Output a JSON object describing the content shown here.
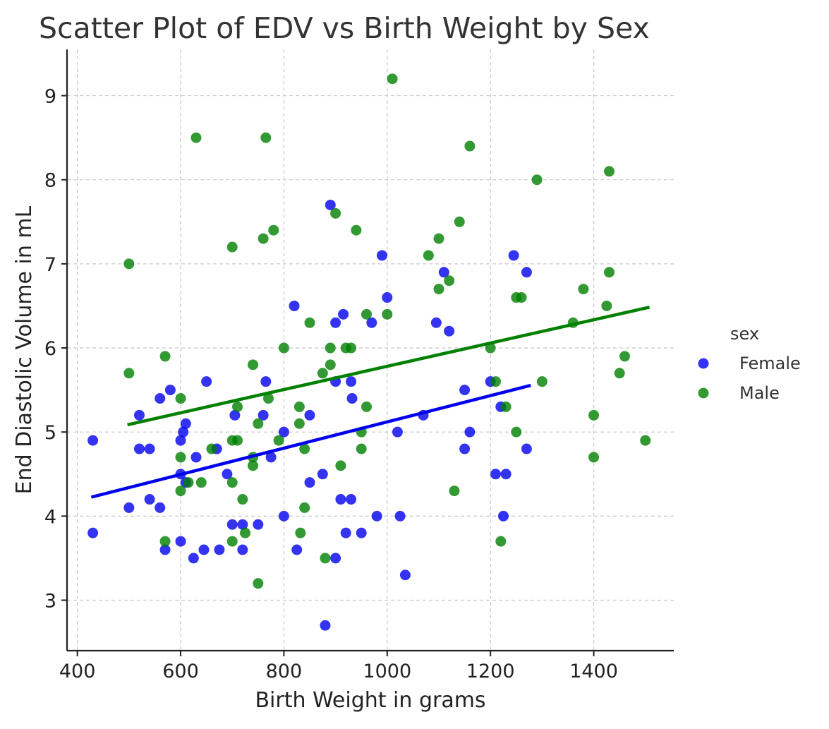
{
  "chart_data": {
    "type": "scatter",
    "title": "Scatter Plot of EDV vs Birth Weight by Sex",
    "xlabel": "Birth Weight in grams",
    "ylabel": "End Diastolic Volume in mL",
    "xlim": [
      380,
      1555
    ],
    "ylim": [
      2.4,
      9.55
    ],
    "xticks": [
      400,
      600,
      800,
      1000,
      1200,
      1400
    ],
    "yticks": [
      3,
      4,
      5,
      6,
      7,
      8,
      9
    ],
    "grid": true,
    "legend": {
      "title": "sex",
      "position": "right"
    },
    "series": [
      {
        "name": "Female",
        "color": "#0000ee",
        "points": [
          [
            430,
            4.9
          ],
          [
            430,
            3.8
          ],
          [
            500,
            4.1
          ],
          [
            520,
            5.2
          ],
          [
            520,
            4.8
          ],
          [
            540,
            4.8
          ],
          [
            540,
            4.2
          ],
          [
            560,
            5.4
          ],
          [
            560,
            4.1
          ],
          [
            570,
            3.6
          ],
          [
            580,
            5.5
          ],
          [
            600,
            4.9
          ],
          [
            600,
            4.5
          ],
          [
            600,
            3.7
          ],
          [
            605,
            5.0
          ],
          [
            610,
            5.1
          ],
          [
            610,
            4.4
          ],
          [
            625,
            3.5
          ],
          [
            630,
            4.7
          ],
          [
            645,
            3.6
          ],
          [
            650,
            5.6
          ],
          [
            670,
            4.8
          ],
          [
            675,
            3.6
          ],
          [
            690,
            4.5
          ],
          [
            700,
            3.9
          ],
          [
            705,
            5.2
          ],
          [
            720,
            3.9
          ],
          [
            720,
            3.6
          ],
          [
            750,
            3.9
          ],
          [
            760,
            5.2
          ],
          [
            765,
            5.6
          ],
          [
            775,
            4.7
          ],
          [
            800,
            5.0
          ],
          [
            800,
            4.0
          ],
          [
            820,
            6.5
          ],
          [
            825,
            3.6
          ],
          [
            850,
            5.2
          ],
          [
            850,
            4.4
          ],
          [
            875,
            4.5
          ],
          [
            880,
            2.7
          ],
          [
            890,
            7.7
          ],
          [
            900,
            6.3
          ],
          [
            900,
            5.6
          ],
          [
            900,
            3.5
          ],
          [
            910,
            4.2
          ],
          [
            915,
            6.4
          ],
          [
            920,
            3.8
          ],
          [
            930,
            5.6
          ],
          [
            930,
            4.2
          ],
          [
            932,
            5.4
          ],
          [
            950,
            3.8
          ],
          [
            970,
            6.3
          ],
          [
            980,
            4.0
          ],
          [
            990,
            7.1
          ],
          [
            1000,
            6.6
          ],
          [
            1020,
            5.0
          ],
          [
            1025,
            4.0
          ],
          [
            1035,
            3.3
          ],
          [
            1070,
            5.2
          ],
          [
            1095,
            6.3
          ],
          [
            1110,
            6.9
          ],
          [
            1120,
            6.2
          ],
          [
            1150,
            5.5
          ],
          [
            1150,
            4.8
          ],
          [
            1160,
            5.0
          ],
          [
            1200,
            5.6
          ],
          [
            1210,
            4.5
          ],
          [
            1220,
            5.3
          ],
          [
            1225,
            4.0
          ],
          [
            1230,
            4.5
          ],
          [
            1245,
            7.1
          ],
          [
            1270,
            6.9
          ],
          [
            1270,
            4.8
          ]
        ],
        "fit": [
          [
            430,
            4.23
          ],
          [
            1275,
            5.55
          ]
        ]
      },
      {
        "name": "Male",
        "color": "#008000",
        "points": [
          [
            500,
            7.0
          ],
          [
            500,
            5.7
          ],
          [
            570,
            5.9
          ],
          [
            570,
            3.7
          ],
          [
            600,
            5.4
          ],
          [
            600,
            4.7
          ],
          [
            600,
            4.3
          ],
          [
            615,
            4.4
          ],
          [
            630,
            8.5
          ],
          [
            640,
            4.4
          ],
          [
            660,
            4.8
          ],
          [
            700,
            7.2
          ],
          [
            700,
            4.9
          ],
          [
            700,
            4.4
          ],
          [
            700,
            3.7
          ],
          [
            710,
            5.3
          ],
          [
            710,
            4.9
          ],
          [
            720,
            4.2
          ],
          [
            725,
            3.8
          ],
          [
            740,
            5.8
          ],
          [
            740,
            4.7
          ],
          [
            740,
            4.6
          ],
          [
            750,
            5.1
          ],
          [
            750,
            3.2
          ],
          [
            760,
            7.3
          ],
          [
            765,
            8.5
          ],
          [
            770,
            5.4
          ],
          [
            780,
            7.4
          ],
          [
            790,
            4.9
          ],
          [
            800,
            6.0
          ],
          [
            830,
            5.3
          ],
          [
            830,
            5.1
          ],
          [
            832,
            3.8
          ],
          [
            840,
            4.8
          ],
          [
            840,
            4.1
          ],
          [
            850,
            6.3
          ],
          [
            875,
            5.7
          ],
          [
            880,
            3.5
          ],
          [
            890,
            6.0
          ],
          [
            890,
            5.8
          ],
          [
            900,
            7.6
          ],
          [
            910,
            4.6
          ],
          [
            920,
            6.0
          ],
          [
            930,
            6.0
          ],
          [
            940,
            7.4
          ],
          [
            950,
            5.0
          ],
          [
            950,
            4.8
          ],
          [
            960,
            6.4
          ],
          [
            960,
            5.3
          ],
          [
            1000,
            6.4
          ],
          [
            1010,
            9.2
          ],
          [
            1080,
            7.1
          ],
          [
            1100,
            7.3
          ],
          [
            1100,
            6.7
          ],
          [
            1120,
            6.8
          ],
          [
            1130,
            4.3
          ],
          [
            1140,
            7.5
          ],
          [
            1160,
            8.4
          ],
          [
            1200,
            6.0
          ],
          [
            1210,
            5.6
          ],
          [
            1220,
            3.7
          ],
          [
            1230,
            5.3
          ],
          [
            1250,
            6.6
          ],
          [
            1250,
            5.0
          ],
          [
            1260,
            6.6
          ],
          [
            1290,
            8.0
          ],
          [
            1300,
            5.6
          ],
          [
            1360,
            6.3
          ],
          [
            1380,
            6.7
          ],
          [
            1400,
            5.2
          ],
          [
            1400,
            4.7
          ],
          [
            1425,
            6.5
          ],
          [
            1430,
            8.1
          ],
          [
            1430,
            6.9
          ],
          [
            1450,
            5.7
          ],
          [
            1460,
            5.9
          ],
          [
            1500,
            4.9
          ]
        ],
        "fit": [
          [
            500,
            5.09
          ],
          [
            1505,
            6.48
          ]
        ]
      }
    ]
  }
}
